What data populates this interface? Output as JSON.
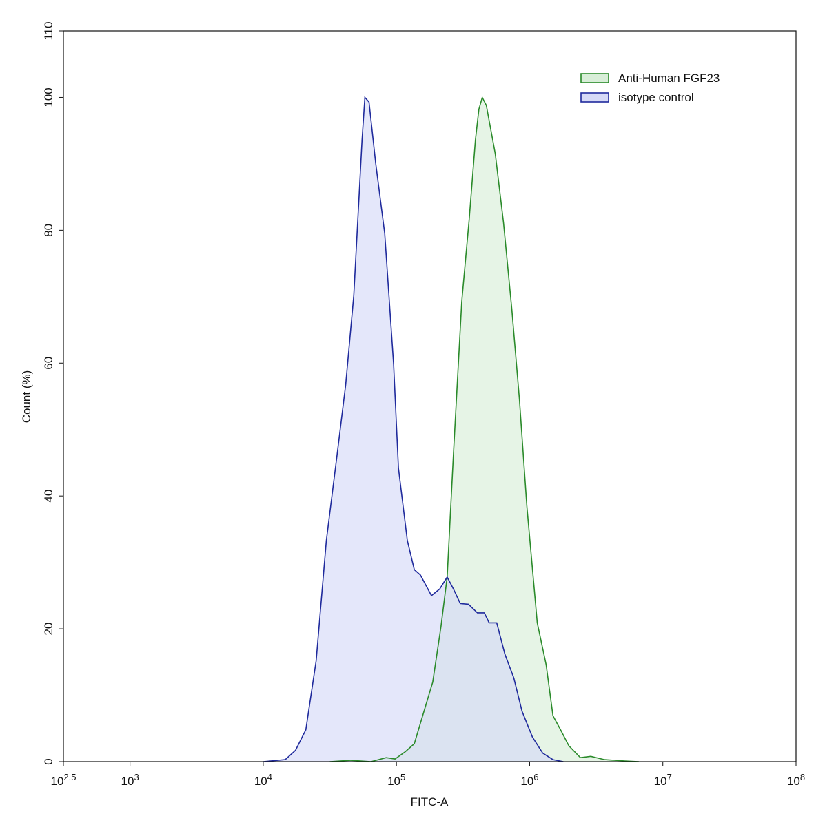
{
  "chart_data": {
    "type": "histogram-overlay",
    "xlabel": "FITC-A",
    "ylabel": "Count  (%)",
    "xscale": "log",
    "xlim": [
      316.2278,
      100000000
    ],
    "xticks": [
      {
        "value": 316.2278,
        "label": {
          "base": "10",
          "exponent": "2.5"
        }
      },
      {
        "value": 1000,
        "label": {
          "base": "10",
          "exponent": "3"
        }
      },
      {
        "value": 10000,
        "label": {
          "base": "10",
          "exponent": "4"
        }
      },
      {
        "value": 100000,
        "label": {
          "base": "10",
          "exponent": "5"
        }
      },
      {
        "value": 1000000,
        "label": {
          "base": "10",
          "exponent": "6"
        }
      },
      {
        "value": 10000000,
        "label": {
          "base": "10",
          "exponent": "7"
        }
      },
      {
        "value": 100000000,
        "label": {
          "base": "10",
          "exponent": "8"
        }
      }
    ],
    "ylim": [
      0,
      110
    ],
    "yticks": [
      0,
      20,
      40,
      60,
      80,
      100,
      110
    ],
    "legend": "upper right",
    "series": [
      {
        "name": "Anti-Human FGF23",
        "color": "#2a8a2a",
        "fill": "#d8eed8",
        "x": [
          31620,
          45190,
          64420,
          83750,
          97720,
          116700,
          136100,
          151400,
          187500,
          216300,
          240400,
          267900,
          309000,
          351600,
          391700,
          415900,
          440600,
          473200,
          552100,
          636800,
          734500,
          837500,
          952800,
          1140000,
          1330000,
          1496000,
          1687000,
          1968000,
          2404000,
          2877000,
          3648000,
          5200000,
          6607000
        ],
        "values": [
          0,
          0.2,
          0,
          0.6,
          0.4,
          1.5,
          2.7,
          5.8,
          12,
          20.4,
          27.8,
          46.3,
          69.2,
          81.6,
          93.6,
          98.2,
          100,
          98.8,
          91.5,
          81.1,
          68.1,
          54.6,
          38.5,
          20.9,
          14.6,
          6.9,
          5,
          2.4,
          0.6,
          0.8,
          0.3,
          0.1,
          0
        ]
      },
      {
        "name": "isotype control",
        "color": "#1f2a9c",
        "fill": "#d6daf7",
        "x": [
          10000,
          14620,
          17460,
          20890,
          24950,
          29790,
          35640,
          41590,
          47860,
          55210,
          57940,
          62230,
          69980,
          81660,
          95280,
          103500,
          120800,
          136100,
          151400,
          183200,
          211300,
          240400,
          267900,
          301300,
          347500,
          405500,
          457100,
          496600,
          566200,
          651600,
          760300,
          877000,
          1050000,
          1253000,
          1496000,
          1791000
        ],
        "values": [
          0,
          0.3,
          1.7,
          4.8,
          15.2,
          33.3,
          45.8,
          56.7,
          70.2,
          93.6,
          100,
          99.3,
          90,
          79.5,
          59.8,
          44.2,
          33.3,
          28.9,
          28.1,
          25,
          26,
          27.8,
          26,
          23.8,
          23.7,
          22.4,
          22.4,
          20.9,
          20.9,
          16.2,
          12.6,
          7.6,
          3.7,
          1.3,
          0.3,
          0
        ]
      }
    ]
  }
}
